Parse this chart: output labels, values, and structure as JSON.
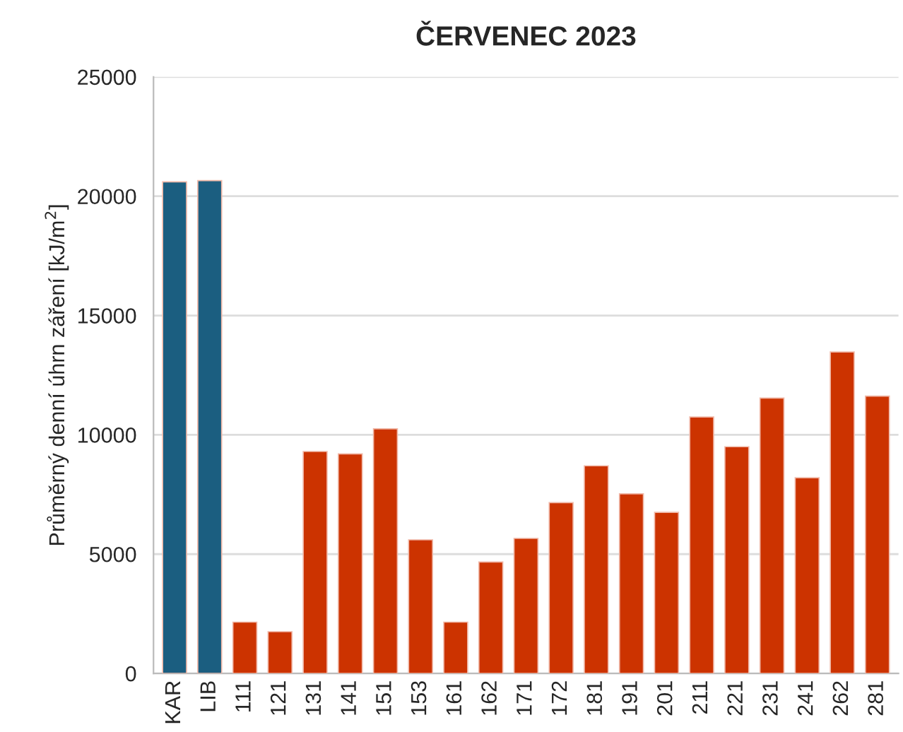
{
  "chart_data": {
    "type": "bar",
    "title": "ČERVENEC 2023",
    "ylabel": "Průměrný denní úhrn záření [kJ/m$^{2}$]",
    "categories": [
      "KAR",
      "LIB",
      "111",
      "121",
      "131",
      "141",
      "151",
      "153",
      "161",
      "162",
      "171",
      "172",
      "181",
      "191",
      "201",
      "211",
      "221",
      "231",
      "241",
      "262",
      "281"
    ],
    "values": [
      20600,
      20650,
      2150,
      1750,
      9300,
      9200,
      10250,
      5600,
      2150,
      4670,
      5660,
      7160,
      8700,
      7530,
      6750,
      10750,
      9500,
      11540,
      8200,
      13470,
      11620
    ],
    "colors": [
      "#1b5e80",
      "#1b5e80",
      "#cc3300",
      "#cc3300",
      "#cc3300",
      "#cc3300",
      "#cc3300",
      "#cc3300",
      "#cc3300",
      "#cc3300",
      "#cc3300",
      "#cc3300",
      "#cc3300",
      "#cc3300",
      "#cc3300",
      "#cc3300",
      "#cc3300",
      "#cc3300",
      "#cc3300",
      "#cc3300",
      "#cc3300"
    ],
    "ylim": [
      0,
      25000
    ],
    "yticks": [
      0,
      5000,
      10000,
      15000,
      20000,
      25000
    ],
    "grid": "y"
  }
}
